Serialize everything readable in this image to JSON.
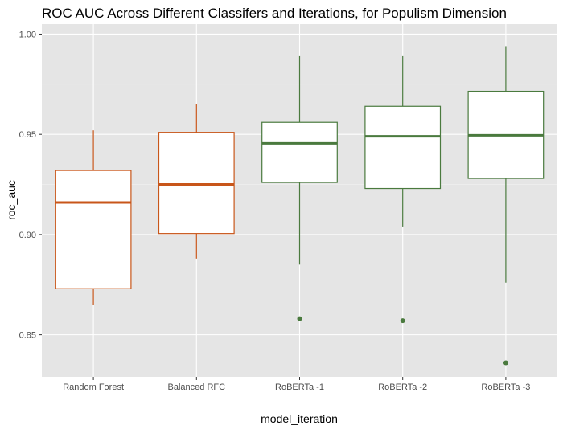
{
  "chart_data": {
    "type": "boxplot",
    "title": "ROC AUC Across Different Classifers and Iterations, for Populism Dimension",
    "xlabel": "model_iteration",
    "ylabel": "roc_auc",
    "ylim": [
      0.829,
      1.005
    ],
    "yticks": [
      0.85,
      0.9,
      0.95,
      1.0
    ],
    "ytick_labels": [
      "0.85",
      "0.90",
      "0.95",
      "1.00"
    ],
    "grid": true,
    "background": "#e5e5e5",
    "categories": [
      "Random Forest",
      "Balanced RFC",
      "RoBERTa -1",
      "RoBERTa -2",
      "RoBERTa -3"
    ],
    "boxes": [
      {
        "category": "Random Forest",
        "whisker_low": 0.865,
        "q1": 0.873,
        "median": 0.916,
        "q3": 0.932,
        "whisker_high": 0.952,
        "outliers": [],
        "color": "#c8561a"
      },
      {
        "category": "Balanced RFC",
        "whisker_low": 0.888,
        "q1": 0.9005,
        "median": 0.925,
        "q3": 0.951,
        "whisker_high": 0.965,
        "outliers": [],
        "color": "#c8561a"
      },
      {
        "category": "RoBERTa -1",
        "whisker_low": 0.885,
        "q1": 0.926,
        "median": 0.9455,
        "q3": 0.956,
        "whisker_high": 0.989,
        "outliers": [
          0.858
        ],
        "color": "#4a7a3e"
      },
      {
        "category": "RoBERTa -2",
        "whisker_low": 0.904,
        "q1": 0.923,
        "median": 0.949,
        "q3": 0.964,
        "whisker_high": 0.989,
        "outliers": [
          0.857
        ],
        "color": "#4a7a3e"
      },
      {
        "category": "RoBERTa -3",
        "whisker_low": 0.876,
        "q1": 0.928,
        "median": 0.9495,
        "q3": 0.9715,
        "whisker_high": 0.994,
        "outliers": [
          0.836
        ],
        "color": "#4a7a3e"
      }
    ]
  }
}
